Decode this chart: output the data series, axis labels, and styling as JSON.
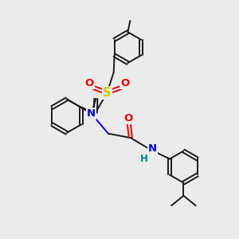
{
  "bg_color": "#ebebeb",
  "bond_color": "#1a1a1a",
  "bond_lw": 1.4,
  "atom_colors": {
    "N": "#0000ee",
    "O": "#ee0000",
    "S": "#cccc00",
    "H": "#008888",
    "C": "#1a1a1a"
  },
  "font_size": 8.5,
  "fig_size": [
    3.0,
    3.0
  ],
  "dpi": 100
}
